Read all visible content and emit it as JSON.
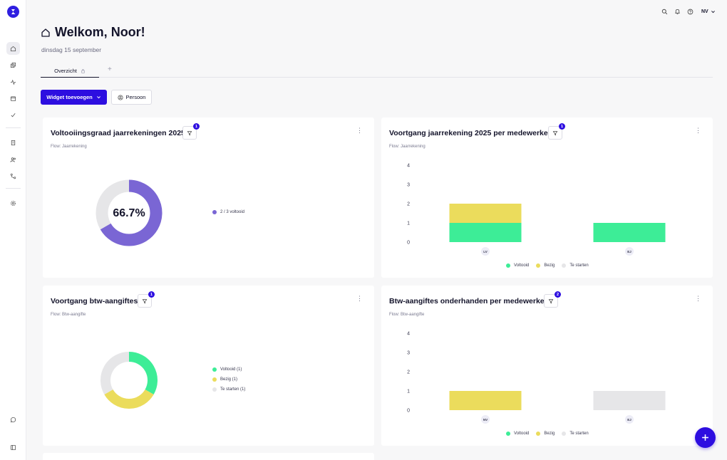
{
  "header": {
    "title": "Welkom, Noor!",
    "date": "dinsdag 15 september",
    "user_initials": "NV"
  },
  "tabs": [
    {
      "label": "Overzicht",
      "active": true
    }
  ],
  "tab_add_label": "+",
  "toolbar": {
    "add_widget_label": "Widget toevoegen",
    "person_label": "Persoon"
  },
  "colors": {
    "accent": "#2d0ee0",
    "voltooid": "#3ded97",
    "bezig": "#ebdc5c",
    "te_starten": "#e6e6e8",
    "purple": "#7a66d4"
  },
  "widgets": [
    {
      "title": "Voltooiingsgraad jaarrekeningen 2025",
      "subtitle": "Flow: Jaarrekening",
      "filter_count": "1",
      "center_label": "66.7%",
      "legend": [
        {
          "label": "2 / 3 voltooid",
          "color": "#7a66d4"
        }
      ]
    },
    {
      "title": "Voortgang jaarrekening 2025 per medewerker",
      "subtitle": "Flow: Jaarrekening",
      "filter_count": "1",
      "legend": [
        {
          "label": "Voltooid",
          "color": "#3ded97"
        },
        {
          "label": "Bezig",
          "color": "#ebdc5c"
        },
        {
          "label": "Te starten",
          "color": "#e6e6e8"
        }
      ]
    },
    {
      "title": "Voortgang btw-aangiftes",
      "subtitle": "Flow: Btw-aangifte",
      "filter_count": "1",
      "legend": [
        {
          "label": "Voltooid (1)",
          "color": "#3ded97"
        },
        {
          "label": "Bezig (1)",
          "color": "#ebdc5c"
        },
        {
          "label": "Te starten (1)",
          "color": "#e6e6e8"
        }
      ]
    },
    {
      "title": "Btw-aangiftes onderhanden per medewerker",
      "subtitle": "Flow: Btw-aangifte",
      "filter_count": "2",
      "legend": [
        {
          "label": "Voltooid",
          "color": "#3ded97"
        },
        {
          "label": "Bezig",
          "color": "#ebdc5c"
        },
        {
          "label": "Te starten",
          "color": "#e6e6e8"
        }
      ]
    }
  ],
  "chart_data": [
    {
      "type": "pie",
      "title": "Voltooiingsgraad jaarrekeningen 2025",
      "center_label": "66.7%",
      "slices": [
        {
          "label": "2 / 3 voltooid",
          "value": 2
        },
        {
          "value": 1
        }
      ]
    },
    {
      "type": "bar",
      "stacked": true,
      "title": "Voortgang jaarrekening 2025 per medewerker",
      "categories": [
        "LV",
        "EJ"
      ],
      "series": [
        {
          "name": "Voltooid",
          "values": [
            1,
            1
          ]
        },
        {
          "name": "Bezig",
          "values": [
            1,
            0
          ]
        },
        {
          "name": "Te starten",
          "values": [
            0,
            0
          ]
        }
      ],
      "ylim": [
        0,
        4
      ],
      "yticks": [
        0,
        1,
        2,
        3,
        4
      ],
      "legend": "bottom"
    },
    {
      "type": "pie",
      "title": "Voortgang btw-aangiftes",
      "slices": [
        {
          "label": "Voltooid (1)",
          "value": 1
        },
        {
          "label": "Bezig (1)",
          "value": 1
        },
        {
          "label": "Te starten (1)",
          "value": 1
        }
      ]
    },
    {
      "type": "bar",
      "stacked": true,
      "title": "Btw-aangiftes onderhanden per medewerker",
      "categories": [
        "NV",
        "EJ"
      ],
      "series": [
        {
          "name": "Voltooid",
          "values": [
            0,
            0
          ]
        },
        {
          "name": "Bezig",
          "values": [
            1,
            0
          ]
        },
        {
          "name": "Te starten",
          "values": [
            0,
            1
          ]
        }
      ],
      "ylim": [
        0,
        4
      ],
      "yticks": [
        0,
        1,
        2,
        3,
        4
      ],
      "legend": "bottom"
    }
  ]
}
